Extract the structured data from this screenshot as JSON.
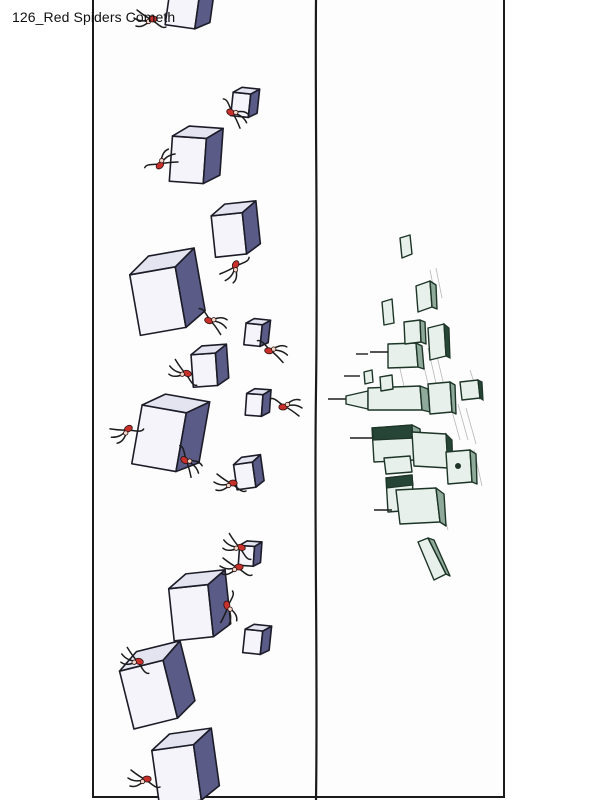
{
  "caption": {
    "text": "126_Red Spiders Cometh"
  },
  "illustration": {
    "left_subject": "falling-cubes-with-red-spiders",
    "right_subject": "distant-city-skyline",
    "colors": {
      "cube_light": "#f4f4fa",
      "cube_top": "#e3e4ef",
      "cube_dark": "#5a5b86",
      "spider_red": "#c8312b",
      "building_face": "#e7f0ea",
      "building_side": "#8fa99a",
      "ink": "#1c1c28"
    }
  }
}
